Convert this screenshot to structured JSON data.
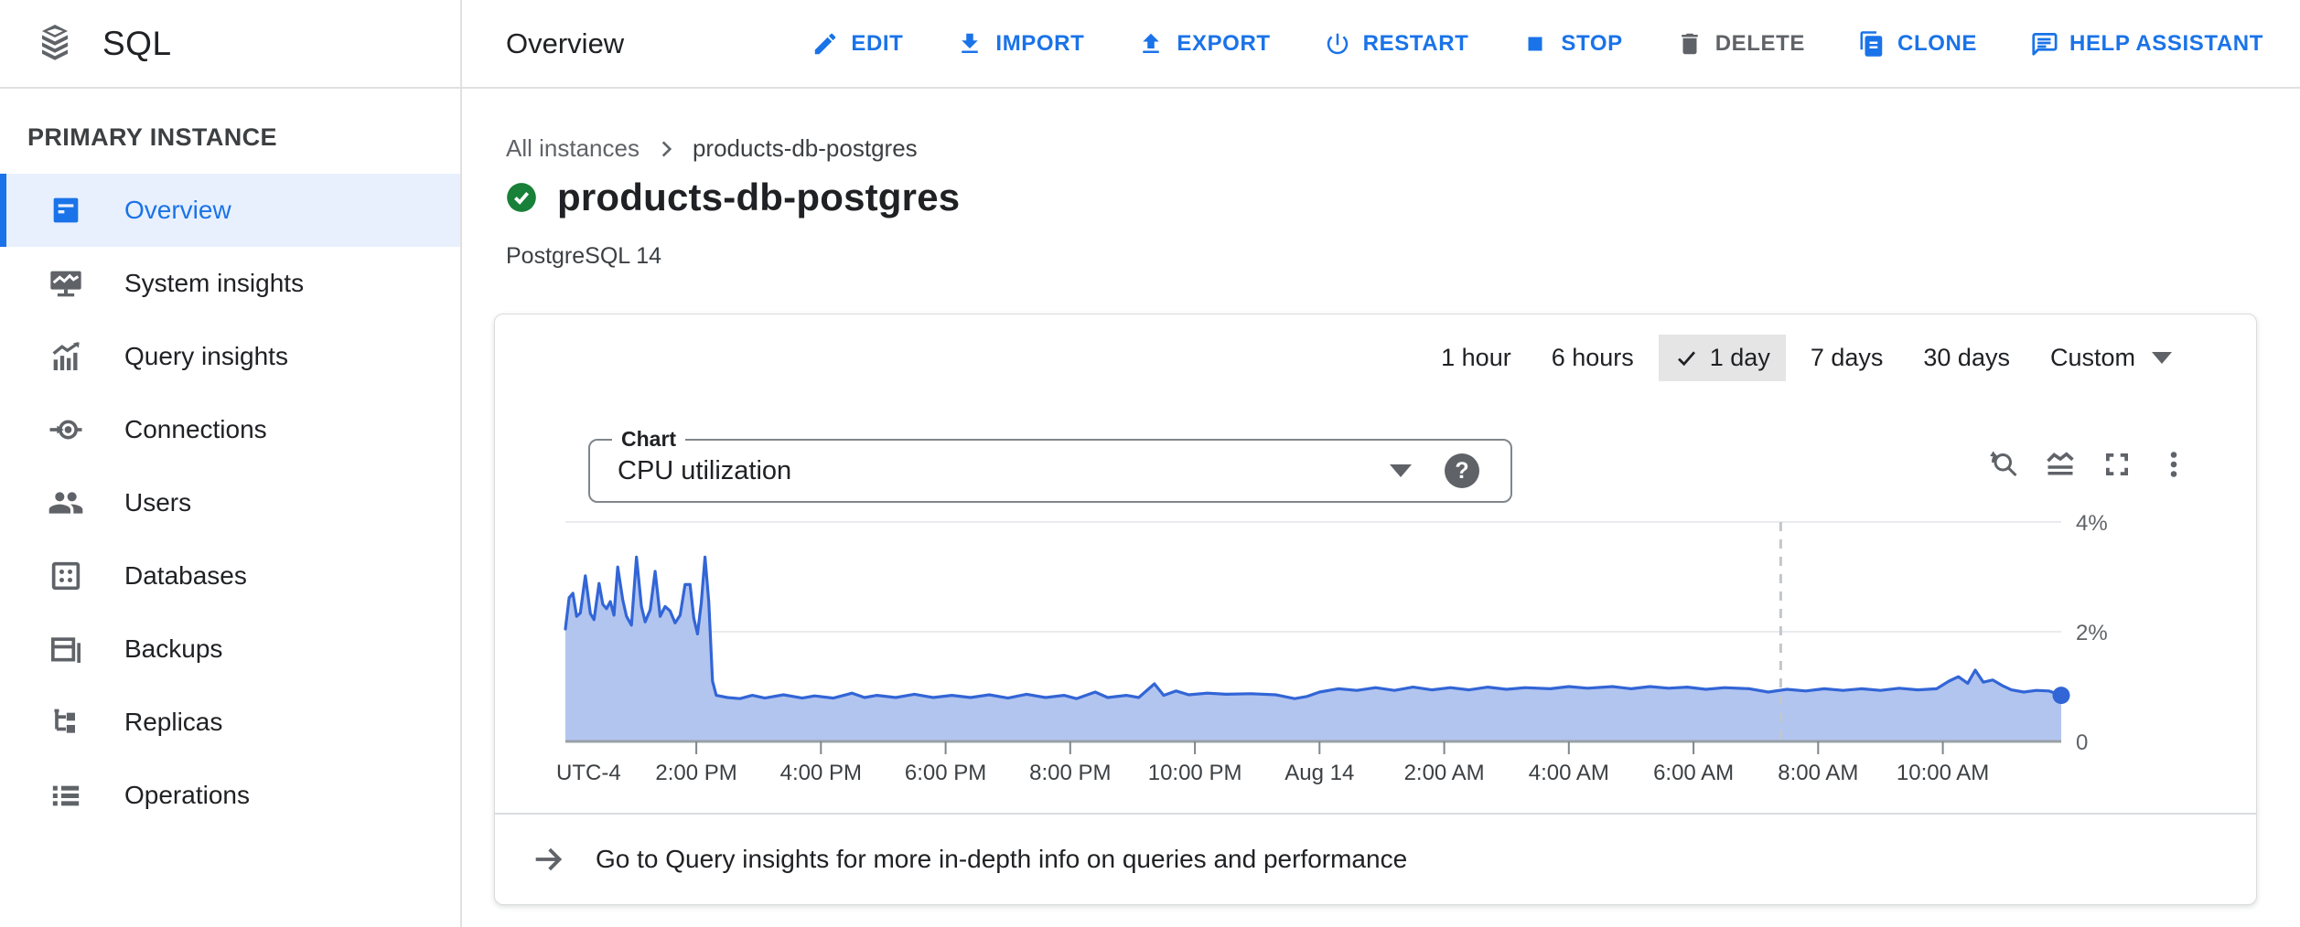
{
  "header": {
    "product": "SQL",
    "page_title": "Overview",
    "actions": [
      {
        "label": "EDIT",
        "icon": "pencil-icon",
        "enabled": true
      },
      {
        "label": "IMPORT",
        "icon": "download-icon",
        "enabled": true
      },
      {
        "label": "EXPORT",
        "icon": "upload-icon",
        "enabled": true
      },
      {
        "label": "RESTART",
        "icon": "power-icon",
        "enabled": true
      },
      {
        "label": "STOP",
        "icon": "stop-icon",
        "enabled": true
      },
      {
        "label": "DELETE",
        "icon": "trash-icon",
        "enabled": false
      },
      {
        "label": "CLONE",
        "icon": "copy-icon",
        "enabled": true
      },
      {
        "label": "HELP ASSISTANT",
        "icon": "chat-icon",
        "enabled": true
      }
    ]
  },
  "sidebar": {
    "section_title": "PRIMARY INSTANCE",
    "items": [
      {
        "label": "Overview",
        "icon": "instance-icon",
        "selected": true
      },
      {
        "label": "System insights",
        "icon": "monitor-chart-icon",
        "selected": false
      },
      {
        "label": "Query insights",
        "icon": "bar-chart-icon",
        "selected": false
      },
      {
        "label": "Connections",
        "icon": "plug-icon",
        "selected": false
      },
      {
        "label": "Users",
        "icon": "people-icon",
        "selected": false
      },
      {
        "label": "Databases",
        "icon": "database-grid-icon",
        "selected": false
      },
      {
        "label": "Backups",
        "icon": "backup-copy-icon",
        "selected": false
      },
      {
        "label": "Replicas",
        "icon": "tree-icon",
        "selected": false
      },
      {
        "label": "Operations",
        "icon": "list-icon",
        "selected": false
      }
    ]
  },
  "breadcrumb": {
    "parent": "All instances",
    "current": "products-db-postgres"
  },
  "instance": {
    "name": "products-db-postgres",
    "status": "healthy",
    "engine": "PostgreSQL 14"
  },
  "metrics_card": {
    "time_ranges": [
      {
        "label": "1 hour",
        "selected": false
      },
      {
        "label": "6 hours",
        "selected": false
      },
      {
        "label": "1 day",
        "selected": true
      },
      {
        "label": "7 days",
        "selected": false
      },
      {
        "label": "30 days",
        "selected": false
      },
      {
        "label": "Custom",
        "selected": false,
        "has_dropdown": true
      }
    ],
    "chart_select": {
      "label": "Chart",
      "value": "CPU utilization",
      "help_glyph": "?"
    },
    "footer_link": "Go to Query insights for more in-depth info on queries and performance"
  },
  "colors": {
    "accent_blue": "#1a73e8",
    "selected_bg": "#e8f0fe",
    "chart_line": "#3265d6",
    "chart_fill": "#b2c5ef",
    "status_green": "#188038",
    "muted_gray": "#5f6368"
  },
  "chart_data": {
    "type": "area",
    "title": "CPU utilization",
    "unit": "%",
    "x_axis": {
      "timezone_label": "UTC-4",
      "span_hours": 24,
      "ticks": [
        {
          "t": 2.1,
          "label": "2:00 PM"
        },
        {
          "t": 4.1,
          "label": "4:00 PM"
        },
        {
          "t": 6.1,
          "label": "6:00 PM"
        },
        {
          "t": 8.1,
          "label": "8:00 PM"
        },
        {
          "t": 10.1,
          "label": "10:00 PM"
        },
        {
          "t": 12.1,
          "label": "Aug 14"
        },
        {
          "t": 14.1,
          "label": "2:00 AM"
        },
        {
          "t": 16.1,
          "label": "4:00 AM"
        },
        {
          "t": 18.1,
          "label": "6:00 AM"
        },
        {
          "t": 20.1,
          "label": "8:00 AM"
        },
        {
          "t": 22.1,
          "label": "10:00 AM"
        }
      ]
    },
    "y_axis": {
      "ticks": [
        {
          "v": 0,
          "label": "0"
        },
        {
          "v": 2,
          "label": "2%"
        },
        {
          "v": 4,
          "label": "4%"
        }
      ],
      "max": 4.3
    },
    "now_marker_t": 19.5,
    "points": [
      [
        0.0,
        2.05
      ],
      [
        0.06,
        2.62
      ],
      [
        0.12,
        2.7
      ],
      [
        0.18,
        2.28
      ],
      [
        0.24,
        2.34
      ],
      [
        0.32,
        3.02
      ],
      [
        0.4,
        2.33
      ],
      [
        0.46,
        2.22
      ],
      [
        0.54,
        2.88
      ],
      [
        0.6,
        2.5
      ],
      [
        0.66,
        2.42
      ],
      [
        0.72,
        2.55
      ],
      [
        0.78,
        2.3
      ],
      [
        0.84,
        3.18
      ],
      [
        0.92,
        2.58
      ],
      [
        0.98,
        2.28
      ],
      [
        1.06,
        2.12
      ],
      [
        1.14,
        3.36
      ],
      [
        1.22,
        2.46
      ],
      [
        1.28,
        2.18
      ],
      [
        1.36,
        2.4
      ],
      [
        1.44,
        3.1
      ],
      [
        1.52,
        2.28
      ],
      [
        1.6,
        2.46
      ],
      [
        1.68,
        2.38
      ],
      [
        1.76,
        2.16
      ],
      [
        1.84,
        2.3
      ],
      [
        1.92,
        2.86
      ],
      [
        2.0,
        2.86
      ],
      [
        2.06,
        2.25
      ],
      [
        2.12,
        1.96
      ],
      [
        2.18,
        2.52
      ],
      [
        2.24,
        3.36
      ],
      [
        2.3,
        2.55
      ],
      [
        2.36,
        1.1
      ],
      [
        2.42,
        0.84
      ],
      [
        2.6,
        0.8
      ],
      [
        2.8,
        0.78
      ],
      [
        3.0,
        0.84
      ],
      [
        3.2,
        0.79
      ],
      [
        3.5,
        0.85
      ],
      [
        3.8,
        0.79
      ],
      [
        4.0,
        0.83
      ],
      [
        4.3,
        0.79
      ],
      [
        4.6,
        0.88
      ],
      [
        4.8,
        0.8
      ],
      [
        5.0,
        0.84
      ],
      [
        5.3,
        0.8
      ],
      [
        5.6,
        0.86
      ],
      [
        5.9,
        0.8
      ],
      [
        6.2,
        0.84
      ],
      [
        6.5,
        0.8
      ],
      [
        6.8,
        0.85
      ],
      [
        7.1,
        0.79
      ],
      [
        7.4,
        0.86
      ],
      [
        7.7,
        0.8
      ],
      [
        8.0,
        0.84
      ],
      [
        8.2,
        0.78
      ],
      [
        8.5,
        0.9
      ],
      [
        8.7,
        0.8
      ],
      [
        9.0,
        0.84
      ],
      [
        9.2,
        0.8
      ],
      [
        9.45,
        1.05
      ],
      [
        9.6,
        0.84
      ],
      [
        9.8,
        0.92
      ],
      [
        10.0,
        0.85
      ],
      [
        10.3,
        0.88
      ],
      [
        10.6,
        0.86
      ],
      [
        11.0,
        0.87
      ],
      [
        11.4,
        0.85
      ],
      [
        11.7,
        0.78
      ],
      [
        11.9,
        0.82
      ],
      [
        12.1,
        0.9
      ],
      [
        12.4,
        0.96
      ],
      [
        12.7,
        0.93
      ],
      [
        13.0,
        0.98
      ],
      [
        13.3,
        0.93
      ],
      [
        13.6,
        0.99
      ],
      [
        13.9,
        0.94
      ],
      [
        14.2,
        0.98
      ],
      [
        14.5,
        0.94
      ],
      [
        14.8,
        0.99
      ],
      [
        15.1,
        0.95
      ],
      [
        15.4,
        0.98
      ],
      [
        15.8,
        0.96
      ],
      [
        16.1,
        1.0
      ],
      [
        16.4,
        0.97
      ],
      [
        16.8,
        1.0
      ],
      [
        17.1,
        0.96
      ],
      [
        17.4,
        1.0
      ],
      [
        17.7,
        0.97
      ],
      [
        18.0,
        0.99
      ],
      [
        18.3,
        0.95
      ],
      [
        18.6,
        0.98
      ],
      [
        19.0,
        0.96
      ],
      [
        19.3,
        0.9
      ],
      [
        19.6,
        0.95
      ],
      [
        19.9,
        0.92
      ],
      [
        20.2,
        0.96
      ],
      [
        20.5,
        0.93
      ],
      [
        20.8,
        0.96
      ],
      [
        21.1,
        0.93
      ],
      [
        21.4,
        0.97
      ],
      [
        21.7,
        0.94
      ],
      [
        22.0,
        0.96
      ],
      [
        22.2,
        1.1
      ],
      [
        22.35,
        1.18
      ],
      [
        22.5,
        1.06
      ],
      [
        22.62,
        1.3
      ],
      [
        22.75,
        1.08
      ],
      [
        22.9,
        1.12
      ],
      [
        23.05,
        1.02
      ],
      [
        23.2,
        0.94
      ],
      [
        23.4,
        0.9
      ],
      [
        23.6,
        0.93
      ],
      [
        23.8,
        0.92
      ],
      [
        24.0,
        0.84
      ]
    ]
  }
}
